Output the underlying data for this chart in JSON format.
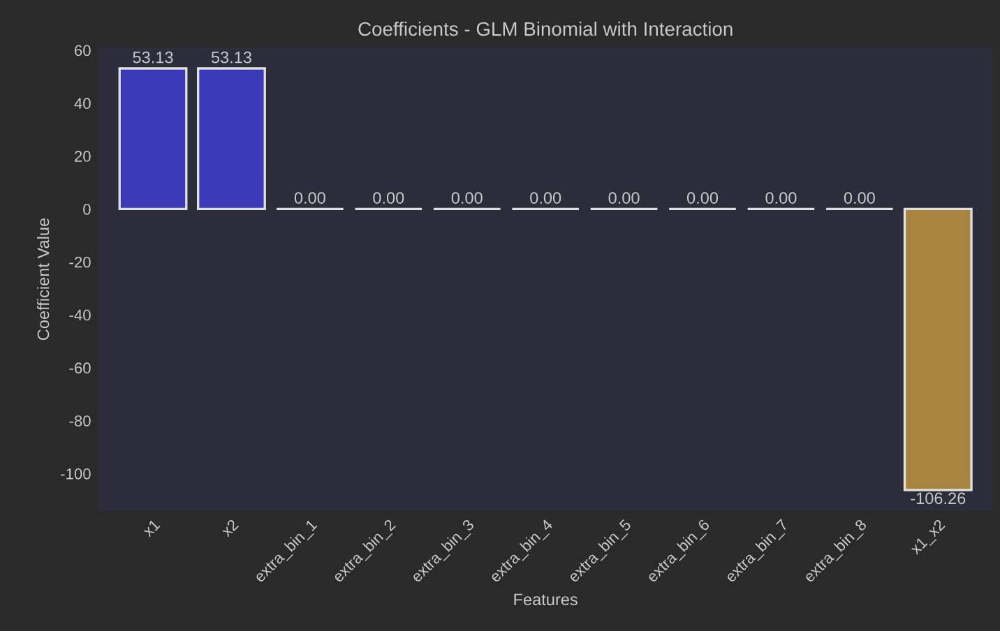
{
  "chart_data": {
    "type": "bar",
    "title": "Coefficients - GLM Binomial with Interaction",
    "xlabel": "Features",
    "ylabel": "Coefficient Value",
    "categories": [
      "x1",
      "x2",
      "extra_bin_1",
      "extra_bin_2",
      "extra_bin_3",
      "extra_bin_4",
      "extra_bin_5",
      "extra_bin_6",
      "extra_bin_7",
      "extra_bin_8",
      "x1_x2"
    ],
    "values": [
      53.13,
      53.13,
      0.0,
      0.0,
      0.0,
      0.0,
      0.0,
      0.0,
      0.0,
      0.0,
      -106.26
    ],
    "colors": [
      "#3a3ab8",
      "#3a3ab8",
      "#e0e0e0",
      "#e0e0e0",
      "#e0e0e0",
      "#e0e0e0",
      "#e0e0e0",
      "#e0e0e0",
      "#e0e0e0",
      "#e0e0e0",
      "#a8843f"
    ],
    "value_labels": [
      "53.13",
      "53.13",
      "0.00",
      "0.00",
      "0.00",
      "0.00",
      "0.00",
      "0.00",
      "0.00",
      "0.00",
      "-106.26"
    ],
    "ylim": [
      -114.2,
      61.1
    ],
    "yticks": [
      -100,
      -80,
      -60,
      -40,
      -20,
      0,
      20,
      40,
      60
    ],
    "grid": false,
    "legend": false
  }
}
